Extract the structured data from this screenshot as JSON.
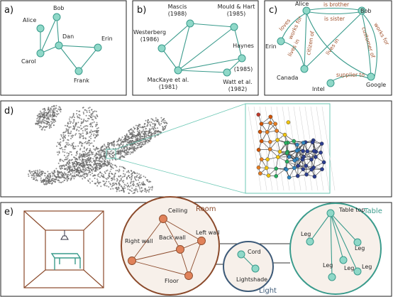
{
  "panel_labels": {
    "a": "a)",
    "b": "b)",
    "c": "c)",
    "d": "d)",
    "e": "e)"
  },
  "panel_a": {
    "nodes": [
      "Alice",
      "Bob",
      "Dan",
      "Carol",
      "Erin",
      "Frank"
    ]
  },
  "panel_b": {
    "nodes": {
      "mascis": [
        "Mascis",
        "(1988)"
      ],
      "mould": [
        "Mould & Hart",
        "(1985)"
      ],
      "westerberg": [
        "Westerberg",
        "(1986)"
      ],
      "haynes": [
        "Haynes",
        "(1985)"
      ],
      "mackaye": [
        "MacKaye et al.",
        "(1981)"
      ],
      "watt": [
        "Watt et al.",
        "(1982)"
      ]
    }
  },
  "panel_c": {
    "nodes": [
      "Alice",
      "Bob",
      "Erin",
      "Canada",
      "Intel",
      "Google"
    ],
    "relations": [
      "loves",
      "is brother",
      "is sister",
      "works for",
      "citizen of",
      "lives in",
      "lives in",
      "customer of",
      "works for",
      "supplier to"
    ]
  },
  "panel_e": {
    "room": {
      "title": "Room",
      "nodes": [
        "Ceiling",
        "Right wall",
        "Back wall",
        "Left wall",
        "Floor"
      ]
    },
    "light": {
      "title": "Light",
      "nodes": [
        "Cord",
        "Lightshade"
      ]
    },
    "table": {
      "title": "Table",
      "nodes": [
        "Table top",
        "Leg",
        "Leg",
        "Leg",
        "Leg",
        "Leg"
      ]
    }
  },
  "colors": {
    "teal": "#3a9b8c",
    "node_fill": "#8fd8c8",
    "brown": "#8b4a2b",
    "brown_node": "#e0825a",
    "circle_bg": "#f7f0ea"
  }
}
